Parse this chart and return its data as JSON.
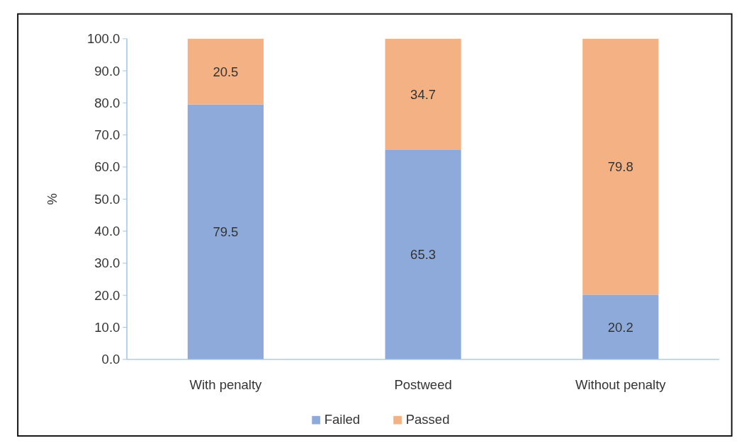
{
  "chart_data": {
    "type": "bar",
    "stacked": true,
    "ylabel": "%",
    "categories": [
      "With penalty",
      "Postweed",
      "Without penalty"
    ],
    "series": [
      {
        "name": "Failed",
        "color": "#8eaadb",
        "values": [
          79.5,
          65.3,
          20.2
        ]
      },
      {
        "name": "Passed",
        "color": "#f4b183",
        "values": [
          20.5,
          34.7,
          79.8
        ]
      }
    ],
    "ylim": [
      0,
      100
    ],
    "yticks": [
      {
        "value": 0,
        "label": "0.0"
      },
      {
        "value": 10,
        "label": "10.0"
      },
      {
        "value": 20,
        "label": "20.0"
      },
      {
        "value": 30,
        "label": "30.0"
      },
      {
        "value": 40,
        "label": "40.0"
      },
      {
        "value": 50,
        "label": "50.0"
      },
      {
        "value": 60,
        "label": "60.0"
      },
      {
        "value": 70,
        "label": "70.0"
      },
      {
        "value": 80,
        "label": "80.0"
      },
      {
        "value": 90,
        "label": "90.0"
      },
      {
        "value": 100,
        "label": "100.0"
      }
    ],
    "data_labels": true,
    "legend": "bottom",
    "grid": false
  }
}
